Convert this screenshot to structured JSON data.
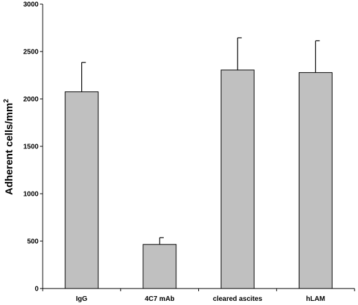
{
  "chart_data": {
    "type": "bar",
    "title": "",
    "xlabel": "",
    "ylabel": "Adherent cells/mm",
    "ylabel_superscript": "2",
    "categories": [
      "IgG",
      "4C7 mAb",
      "cleared ascites",
      "hLAM"
    ],
    "values": [
      2075,
      465,
      2305,
      2278
    ],
    "errors": [
      310,
      72,
      340,
      335
    ],
    "ylim": [
      0,
      3000
    ],
    "yticks": [
      0,
      500,
      1000,
      1500,
      2000,
      2500,
      3000
    ],
    "bar_color": "#c0c0c0",
    "grid": false,
    "legend": "none"
  }
}
